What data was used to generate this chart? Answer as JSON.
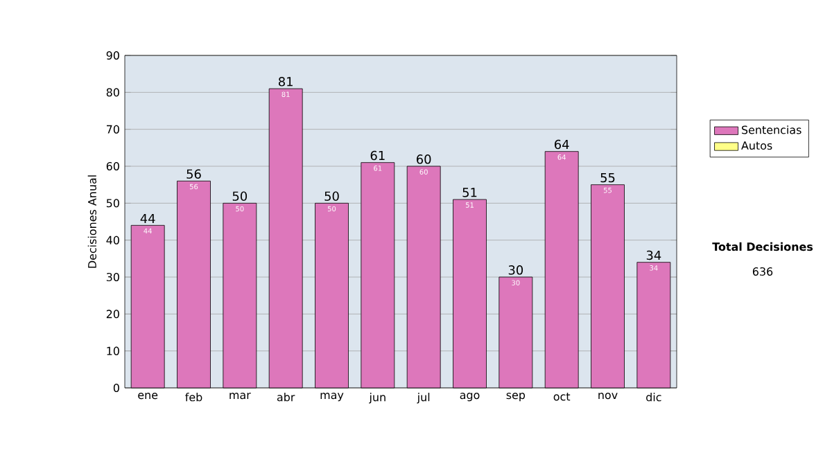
{
  "chart_data": {
    "type": "bar",
    "ylabel": "Decisiones Anual",
    "categories": [
      "ene",
      "feb",
      "mar",
      "abr",
      "may",
      "jun",
      "jul",
      "ago",
      "sep",
      "oct",
      "nov",
      "dic"
    ],
    "series": [
      {
        "name": "Sentencias",
        "color": "#dd77bb",
        "values": [
          44,
          56,
          50,
          81,
          50,
          61,
          60,
          51,
          30,
          64,
          55,
          34
        ]
      },
      {
        "name": "Autos",
        "color": "#ffff88",
        "values": [
          null,
          null,
          null,
          null,
          null,
          null,
          null,
          null,
          null,
          null,
          null,
          null
        ]
      }
    ],
    "ylim": [
      0,
      90
    ],
    "yticks": [
      0,
      10,
      20,
      30,
      40,
      50,
      60,
      70,
      80,
      90
    ],
    "grid": "y",
    "legend": "right",
    "data_labels": true,
    "annotations": [
      "**Total Decisiones**",
      "636",
      {
        "text": "44",
        "x": "ene",
        "y": 44
      },
      {
        "text": "56",
        "x": "feb",
        "y": 56
      },
      {
        "text": "50",
        "x": "mar",
        "y": 50
      },
      {
        "text": "81",
        "x": "abr",
        "y": 81
      },
      {
        "text": "50",
        "x": "may",
        "y": 50
      },
      {
        "text": "61",
        "x": "jun",
        "y": 61
      },
      {
        "text": "60",
        "x": "jul",
        "y": 60
      },
      {
        "text": "51",
        "x": "ago",
        "y": 51
      },
      {
        "text": "30",
        "x": "sep",
        "y": 30
      },
      {
        "text": "64",
        "x": "oct",
        "y": 64
      },
      {
        "text": "55",
        "x": "nov",
        "y": 55
      },
      {
        "text": "34",
        "x": "dic",
        "y": 34
      }
    ]
  }
}
